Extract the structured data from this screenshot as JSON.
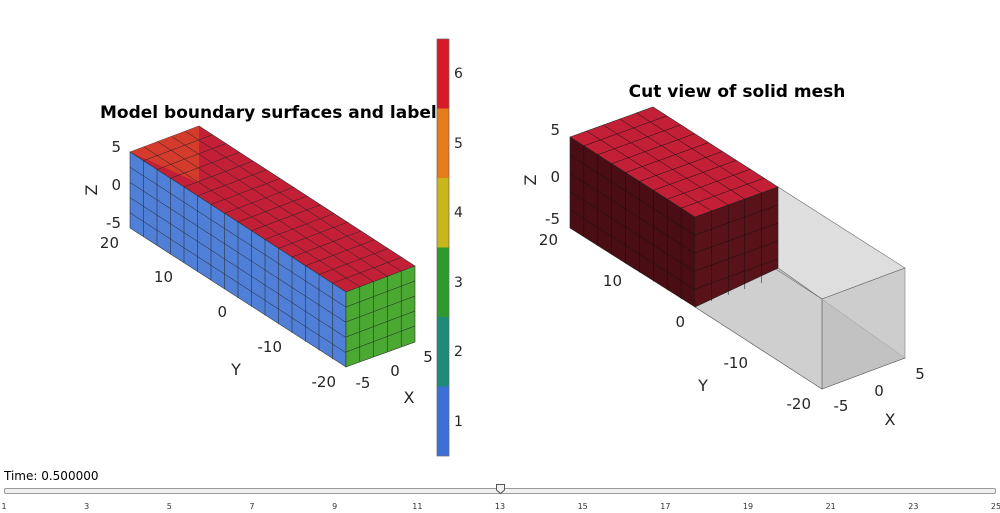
{
  "left_panel": {
    "title": "Model boundary surfaces and labels",
    "z_ticks": [
      "5",
      "0",
      "-5"
    ],
    "z_label": "Z",
    "y_ticks": [
      "20",
      "10",
      "0",
      "-10",
      "-20"
    ],
    "y_label": "Y",
    "x_ticks": [
      "-5",
      "0",
      "5"
    ],
    "x_label": "X"
  },
  "colorbar": {
    "ticks": [
      "6",
      "5",
      "4",
      "3",
      "2",
      "1"
    ],
    "colors": [
      "#d7192a",
      "#e67d1b",
      "#c9b51c",
      "#2e9a2e",
      "#1f8a78",
      "#3d6fd8"
    ]
  },
  "right_panel": {
    "title": "Cut view of solid mesh",
    "z_ticks": [
      "5",
      "0",
      "-5"
    ],
    "z_label": "Z",
    "y_ticks": [
      "20",
      "10",
      "0",
      "-10",
      "-20"
    ],
    "y_label": "Y",
    "x_ticks": [
      "-5",
      "0",
      "5"
    ],
    "x_label": "X"
  },
  "face_colors": {
    "top": "#c31f37",
    "side_y": "#4f7fd6",
    "end_x": "#4aa833",
    "cut_dark": "#4a0d14"
  },
  "time_slider": {
    "label": "Time: 0.500000",
    "value": 13,
    "min": 1,
    "max": 25,
    "ticks": [
      "1",
      "3",
      "5",
      "7",
      "9",
      "11",
      "13",
      "15",
      "17",
      "19",
      "21",
      "23",
      "25"
    ]
  }
}
